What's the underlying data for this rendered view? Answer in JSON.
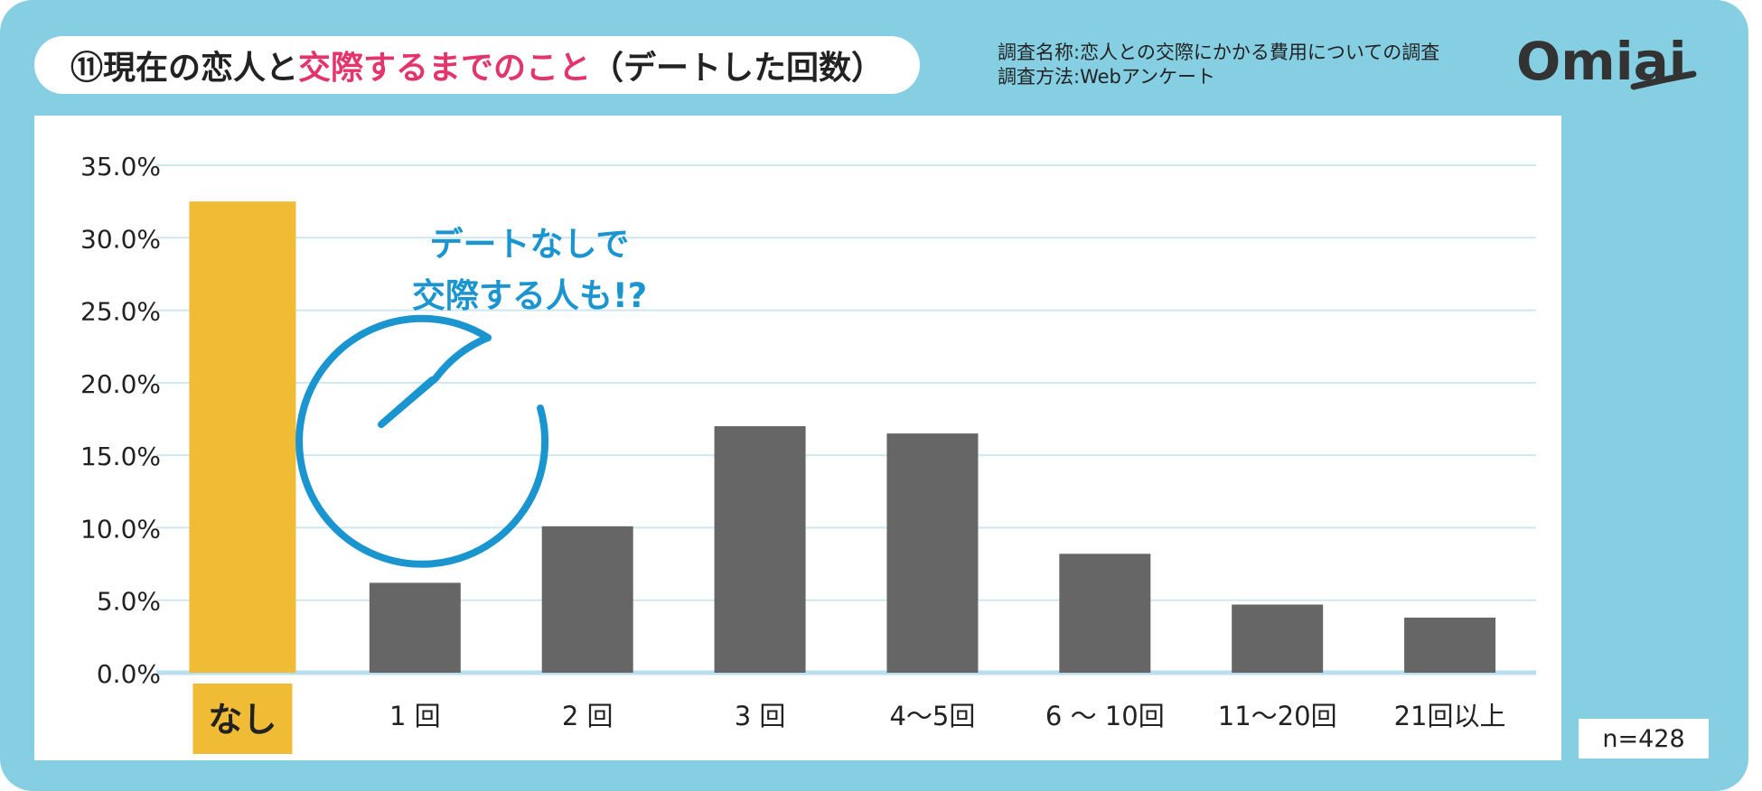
{
  "header": {
    "title_prefix": "⑪現在の恋人と",
    "title_highlight": "交際するまでのこと",
    "title_suffix": "（デートした回数）"
  },
  "survey": {
    "name_line": "調査名称:恋人との交際にかかる費用についての調査",
    "method_line": "調査方法:Webアンケート"
  },
  "brand": {
    "logo_text": "Omiai"
  },
  "callout": {
    "line1": "デートなしで",
    "line2": "交際する人も!?"
  },
  "sample": {
    "label": "n=428"
  },
  "colors": {
    "background": "#86cfe3",
    "highlight_bar": "#f0bb35",
    "bar": "#666666",
    "grid": "#cde8f0",
    "callout": "#1b95cf",
    "accent_text": "#e3346b",
    "logo": "#333333"
  },
  "chart_data": {
    "type": "bar",
    "categories": [
      "なし",
      "1 回",
      "2 回",
      "3 回",
      "4〜5回",
      "6 〜 10回",
      "11〜20回",
      "21回以上"
    ],
    "values": [
      32.5,
      6.2,
      10.1,
      17.0,
      16.5,
      8.2,
      4.7,
      3.8
    ],
    "unit": "%",
    "highlight_index": 0,
    "ylim": [
      0,
      35
    ],
    "yticks": [
      "0.0%",
      "5.0%",
      "10.0%",
      "15.0%",
      "20.0%",
      "25.0%",
      "30.0%",
      "35.0%"
    ],
    "grid": true
  }
}
